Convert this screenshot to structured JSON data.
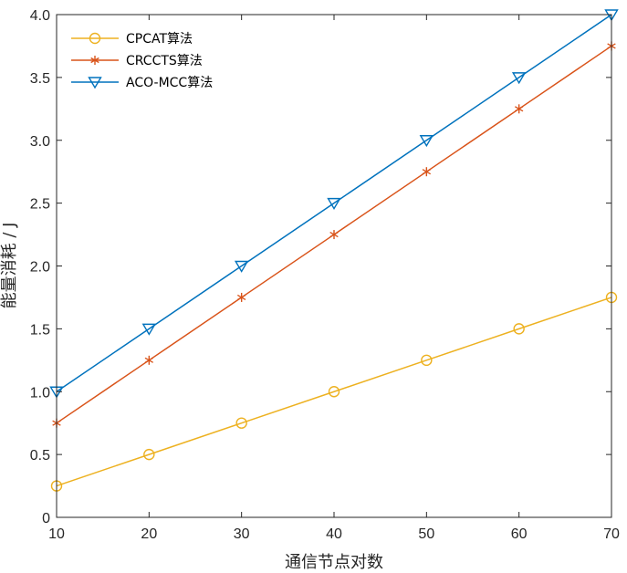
{
  "chart_data": {
    "type": "line",
    "title": "",
    "xlabel": "通信节点对数",
    "ylabel": "能量消耗 / J",
    "x": [
      10,
      20,
      30,
      40,
      50,
      60,
      70
    ],
    "xlim": [
      10,
      70
    ],
    "ylim": [
      0,
      4
    ],
    "xticks": [
      "10",
      "20",
      "30",
      "40",
      "50",
      "60",
      "70"
    ],
    "yticks": [
      "0",
      "0.5",
      "1.0",
      "1.5",
      "2.0",
      "2.5",
      "3.0",
      "3.5",
      "4.0"
    ],
    "grid": false,
    "legend_position": "top-left",
    "series": [
      {
        "name": "CPCAT算法",
        "values": [
          0.25,
          0.5,
          0.75,
          1.0,
          1.25,
          1.5,
          1.75
        ],
        "color": "#EDB120",
        "marker": "circle"
      },
      {
        "name": "CRCCTS算法",
        "values": [
          0.75,
          1.25,
          1.75,
          2.25,
          2.75,
          3.25,
          3.75
        ],
        "color": "#D95319",
        "marker": "asterisk"
      },
      {
        "name": "ACO-MCC算法",
        "values": [
          1.0,
          1.5,
          2.0,
          2.5,
          3.0,
          3.5,
          4.0
        ],
        "color": "#0072BD",
        "marker": "triangle-down"
      }
    ]
  }
}
